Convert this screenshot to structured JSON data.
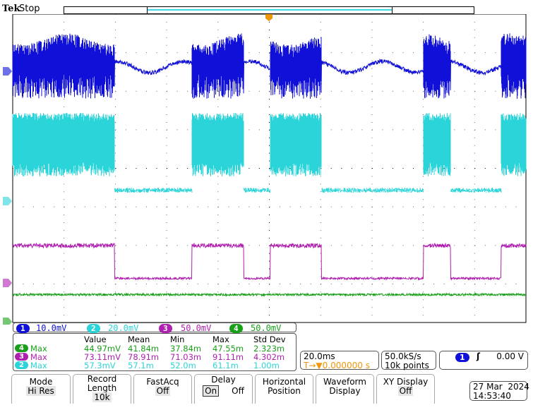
{
  "header": {
    "brand": "Tek",
    "state": "Stop"
  },
  "channels": [
    {
      "num": "1",
      "scale": "10.0mV",
      "color": "#1010d8"
    },
    {
      "num": "2",
      "scale": "20.0mV",
      "color": "#2ad4d8"
    },
    {
      "num": "3",
      "scale": "50.0mV",
      "color": "#b020b0"
    },
    {
      "num": "4",
      "scale": "50.0mV",
      "color": "#19a019"
    }
  ],
  "measurements": {
    "headers": [
      "Value",
      "Mean",
      "Min",
      "Max",
      "Std Dev"
    ],
    "rows": [
      {
        "ch": "4",
        "type": "Max",
        "color": "#19a019",
        "values": [
          "44.97mV",
          "41.84m",
          "37.84m",
          "47.55m",
          "2.323m"
        ]
      },
      {
        "ch": "3",
        "type": "Max",
        "color": "#b020b0",
        "values": [
          "73.11mV",
          "78.91m",
          "71.03m",
          "91.11m",
          "4.302m"
        ]
      },
      {
        "ch": "2",
        "type": "Max",
        "color": "#2ad4d8",
        "values": [
          "57.3mV",
          "57.1m",
          "52.0m",
          "61.1m",
          "1.00m"
        ]
      }
    ]
  },
  "horizontal": {
    "scale": "20.0ms",
    "delay": "0.000000 s",
    "delay_prefix": "T→▼"
  },
  "acquisition": {
    "rate": "50.0kS/s",
    "points": "10k points"
  },
  "trigger": {
    "source": "1",
    "slope": "ʃ",
    "level": "0.00 V"
  },
  "buttons": [
    {
      "title": "Mode",
      "value": "Hi Res"
    },
    {
      "title": "Record Length",
      "value": "10k"
    },
    {
      "title": "FastAcq",
      "value": "Off"
    },
    {
      "title": "Delay",
      "on": "On",
      "off": "Off"
    },
    {
      "title": "Horizontal Position"
    },
    {
      "title": "Waveform Display"
    },
    {
      "title": "XY Display",
      "value": "Off"
    }
  ],
  "datetime": {
    "date": "27 Mar  2024",
    "time": "14:53:40"
  }
}
